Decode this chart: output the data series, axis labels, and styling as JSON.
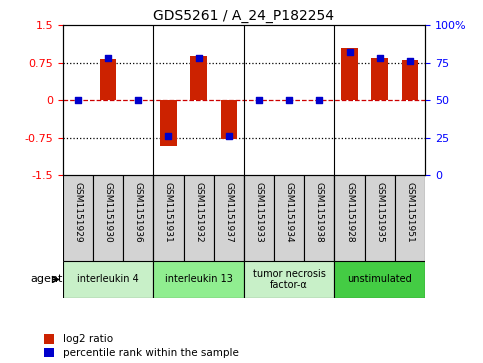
{
  "title": "GDS5261 / A_24_P182254",
  "samples": [
    "GSM1151929",
    "GSM1151930",
    "GSM1151936",
    "GSM1151931",
    "GSM1151932",
    "GSM1151937",
    "GSM1151933",
    "GSM1151934",
    "GSM1151938",
    "GSM1151928",
    "GSM1151935",
    "GSM1151951"
  ],
  "log2_ratio": [
    0.0,
    0.82,
    0.0,
    -0.92,
    0.88,
    -0.78,
    0.0,
    0.0,
    0.0,
    1.05,
    0.85,
    0.8
  ],
  "percentile": [
    50,
    78,
    50,
    26,
    78,
    26,
    50,
    50,
    50,
    82,
    78,
    76
  ],
  "agents": [
    {
      "label": "interleukin 4",
      "start": 0,
      "end": 3,
      "color": "#c8f0c8"
    },
    {
      "label": "interleukin 13",
      "start": 3,
      "end": 6,
      "color": "#90ee90"
    },
    {
      "label": "tumor necrosis\nfactor-α",
      "start": 6,
      "end": 9,
      "color": "#c8f0c8"
    },
    {
      "label": "unstimulated",
      "start": 9,
      "end": 12,
      "color": "#44cc44"
    }
  ],
  "ylim": [
    -1.5,
    1.5
  ],
  "yticks_left": [
    -1.5,
    -0.75,
    0,
    0.75,
    1.5
  ],
  "yticks_right": [
    0,
    25,
    50,
    75,
    100
  ],
  "bar_color_red": "#cc2200",
  "bar_color_blue": "#0000cc",
  "hline_color_red": "#cc0000",
  "hline_color_black": "#000000",
  "bar_width": 0.55,
  "sample_box_color": "#d3d3d3",
  "group_boundaries": [
    3,
    6,
    9
  ]
}
